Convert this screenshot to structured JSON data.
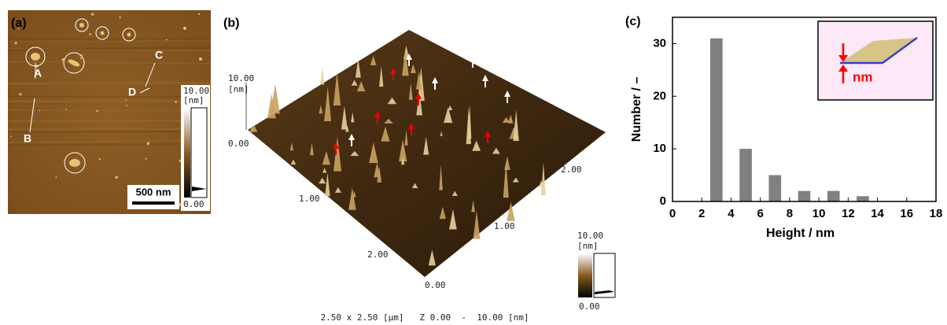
{
  "panel_a": {
    "label": "(a)",
    "markers": [
      "A",
      "B",
      "C",
      "D"
    ],
    "scale_bar": "500 nm",
    "colorbar": {
      "max": "10.00",
      "unit": "[nm]",
      "min": "0.00"
    }
  },
  "panel_b": {
    "label": "(b)",
    "z_axis": {
      "max": "10.00",
      "unit": "[nm]",
      "min": "0.00"
    },
    "left_axis": [
      "1.00",
      "2.00"
    ],
    "origin": "0.00",
    "right_axis": [
      "1.00",
      "2.00"
    ],
    "colorbar": {
      "max": "10.00",
      "unit": "[nm]",
      "min": "0.00"
    },
    "caption": "2.50 x 2.50 [μm]   Z 0.00  -  10.00 [nm]"
  },
  "chart_data": {
    "type": "bar",
    "panel_label": "(c)",
    "x": [
      3,
      5,
      7,
      9,
      11,
      13
    ],
    "values": [
      31,
      10,
      5,
      2,
      2,
      1
    ],
    "color": "#808080",
    "xlim": [
      0,
      18
    ],
    "xticks": [
      0,
      2,
      4,
      6,
      8,
      10,
      12,
      14,
      16,
      18
    ],
    "ylim": [
      0,
      35
    ],
    "yticks": [
      0,
      10,
      20,
      30
    ],
    "xlabel": "Height / nm",
    "ylabel": "Number / –",
    "inset_label": "nm"
  }
}
